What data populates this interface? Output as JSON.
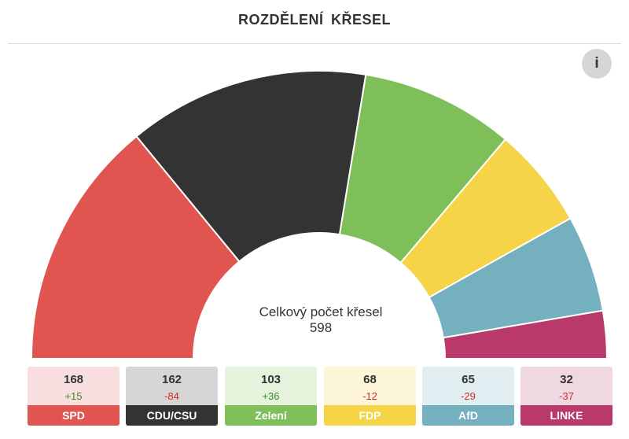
{
  "header": {
    "title": "ROZDĚLENÍ KŘESEL"
  },
  "info_button": {
    "label": "i"
  },
  "center": {
    "label": "Celkový počet křesel",
    "total": "598"
  },
  "chart_data": {
    "type": "pie",
    "shape": "half-donut",
    "title": "ROZDĚLENÍ KŘESEL",
    "total": 598,
    "categories": [
      "SPD",
      "CDU/CSU",
      "Zelení",
      "FDP",
      "AfD",
      "LINKE"
    ],
    "values": [
      168,
      162,
      103,
      68,
      65,
      32
    ],
    "changes": [
      "+15",
      "-84",
      "+36",
      "-12",
      "-29",
      "-37"
    ],
    "colors": [
      "#e05550",
      "#333333",
      "#7fbf5a",
      "#f5d547",
      "#74b0bd",
      "#b9396a"
    ],
    "card_backgrounds": [
      "#f8dede",
      "#d6d6d6",
      "#e5f2dc",
      "#fdf6d8",
      "#e0edf1",
      "#f0d8e2"
    ]
  },
  "parties": [
    {
      "name": "SPD",
      "seats": "168",
      "change": "+15",
      "color": "#e05550",
      "bg": "#f8dede",
      "change_color": "#3f8a2a"
    },
    {
      "name": "CDU/CSU",
      "seats": "162",
      "change": "-84",
      "color": "#333333",
      "bg": "#d6d6d6",
      "change_color": "#d12b2b"
    },
    {
      "name": "Zelení",
      "seats": "103",
      "change": "+36",
      "color": "#7fbf5a",
      "bg": "#e5f2dc",
      "change_color": "#3f8a2a"
    },
    {
      "name": "FDP",
      "seats": "68",
      "change": "-12",
      "color": "#f5d547",
      "bg": "#fdf6d8",
      "change_color": "#d12b2b"
    },
    {
      "name": "AfD",
      "seats": "65",
      "change": "-29",
      "color": "#74b0bd",
      "bg": "#e0edf1",
      "change_color": "#d12b2b"
    },
    {
      "name": "LINKE",
      "seats": "32",
      "change": "-37",
      "color": "#b9396a",
      "bg": "#f0d8e2",
      "change_color": "#d12b2b"
    }
  ]
}
